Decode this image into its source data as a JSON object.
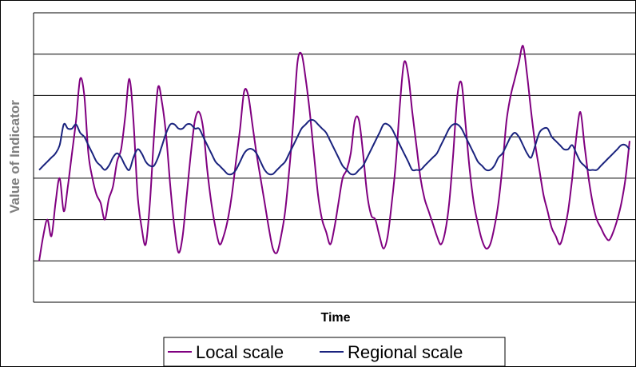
{
  "chart_data": {
    "type": "line",
    "title": "",
    "xlabel": "Time",
    "ylabel": "Value of Indicator",
    "ylim": [
      0,
      7
    ],
    "grid": true,
    "legend_position": "bottom",
    "x": [
      0,
      1,
      2,
      3,
      4,
      5,
      6,
      7,
      8,
      9,
      10,
      11,
      12,
      13,
      14,
      15,
      16,
      17,
      18,
      19,
      20,
      21,
      22,
      23,
      24,
      25,
      26,
      27,
      28,
      29,
      30,
      31,
      32,
      33,
      34,
      35,
      36,
      37,
      38,
      39,
      40,
      41,
      42,
      43,
      44,
      45,
      46,
      47,
      48,
      49,
      50,
      51,
      52,
      53,
      54,
      55,
      56,
      57,
      58,
      59,
      60,
      61,
      62,
      63,
      64,
      65,
      66,
      67,
      68,
      69,
      70,
      71,
      72,
      73,
      74,
      75,
      76,
      77,
      78,
      79,
      80,
      81,
      82,
      83,
      84,
      85,
      86,
      87,
      88,
      89,
      90,
      91,
      92,
      93,
      94,
      95,
      96,
      97,
      98,
      99,
      100,
      101,
      102,
      103,
      104,
      105,
      106,
      107,
      108,
      109,
      110,
      111,
      112,
      113,
      114,
      115,
      116,
      117,
      118,
      119,
      120,
      121,
      122,
      123,
      124,
      125,
      126,
      127,
      128,
      129,
      130,
      131,
      132,
      133,
      134,
      135,
      136,
      137,
      138,
      139,
      140,
      141,
      142,
      143,
      144
    ],
    "series": [
      {
        "name": "Local scale",
        "color": "#800080",
        "values": [
          1.0,
          1.6,
          2.0,
          1.6,
          2.4,
          3.0,
          2.2,
          2.8,
          3.6,
          4.4,
          5.4,
          5.0,
          3.6,
          3.0,
          2.6,
          2.4,
          2.0,
          2.5,
          2.8,
          3.4,
          3.7,
          4.5,
          5.4,
          4.4,
          2.6,
          1.8,
          1.4,
          2.4,
          4.0,
          5.2,
          4.8,
          4.0,
          2.8,
          1.8,
          1.2,
          1.6,
          2.6,
          3.6,
          4.4,
          4.6,
          4.2,
          3.2,
          2.4,
          1.8,
          1.4,
          1.6,
          2.0,
          2.6,
          3.4,
          4.2,
          5.1,
          5.0,
          4.3,
          3.6,
          3.0,
          2.4,
          1.8,
          1.3,
          1.2,
          1.6,
          2.2,
          3.2,
          4.4,
          5.8,
          6.0,
          5.4,
          4.6,
          3.6,
          2.6,
          2.0,
          1.7,
          1.4,
          1.8,
          2.4,
          3.0,
          3.2,
          3.6,
          4.4,
          4.4,
          3.6,
          2.6,
          2.1,
          2.0,
          1.6,
          1.3,
          1.6,
          2.4,
          3.4,
          4.8,
          5.8,
          5.5,
          4.6,
          3.8,
          3.0,
          2.5,
          2.2,
          1.9,
          1.6,
          1.4,
          1.7,
          2.4,
          3.6,
          5.0,
          5.3,
          4.3,
          3.2,
          2.4,
          1.9,
          1.5,
          1.3,
          1.4,
          1.8,
          2.4,
          3.3,
          4.4,
          5.0,
          5.4,
          5.8,
          6.2,
          5.5,
          4.6,
          3.8,
          3.2,
          2.6,
          2.2,
          1.8,
          1.6,
          1.4,
          1.7,
          2.2,
          3.0,
          4.0,
          4.6,
          3.8,
          3.0,
          2.4,
          2.0,
          1.8,
          1.6,
          1.5,
          1.7,
          2.0,
          2.4,
          3.0,
          3.9
        ]
      },
      {
        "name": "Regional scale",
        "color": "#1a237e",
        "values": [
          3.2,
          3.3,
          3.4,
          3.5,
          3.6,
          3.8,
          4.3,
          4.2,
          4.2,
          4.3,
          4.1,
          4.0,
          3.8,
          3.6,
          3.4,
          3.3,
          3.2,
          3.3,
          3.5,
          3.6,
          3.5,
          3.3,
          3.2,
          3.5,
          3.7,
          3.6,
          3.4,
          3.3,
          3.3,
          3.5,
          3.8,
          4.1,
          4.3,
          4.3,
          4.2,
          4.2,
          4.3,
          4.3,
          4.2,
          4.2,
          4.0,
          3.8,
          3.6,
          3.4,
          3.3,
          3.2,
          3.1,
          3.1,
          3.2,
          3.4,
          3.6,
          3.7,
          3.7,
          3.6,
          3.4,
          3.2,
          3.1,
          3.1,
          3.2,
          3.3,
          3.4,
          3.6,
          3.8,
          4.0,
          4.2,
          4.3,
          4.4,
          4.4,
          4.3,
          4.2,
          4.1,
          3.9,
          3.7,
          3.5,
          3.3,
          3.2,
          3.1,
          3.1,
          3.2,
          3.3,
          3.5,
          3.7,
          3.9,
          4.1,
          4.3,
          4.3,
          4.2,
          4.0,
          3.8,
          3.6,
          3.4,
          3.2,
          3.2,
          3.2,
          3.3,
          3.4,
          3.5,
          3.6,
          3.8,
          4.0,
          4.2,
          4.3,
          4.3,
          4.2,
          4.0,
          3.8,
          3.6,
          3.4,
          3.3,
          3.2,
          3.2,
          3.3,
          3.5,
          3.6,
          3.8,
          4.0,
          4.1,
          4.0,
          3.8,
          3.6,
          3.5,
          3.8,
          4.1,
          4.2,
          4.2,
          4.0,
          3.9,
          3.8,
          3.7,
          3.7,
          3.8,
          3.6,
          3.4,
          3.3,
          3.2,
          3.2,
          3.2,
          3.3,
          3.4,
          3.5,
          3.6,
          3.7,
          3.8,
          3.8,
          3.7
        ]
      }
    ]
  }
}
